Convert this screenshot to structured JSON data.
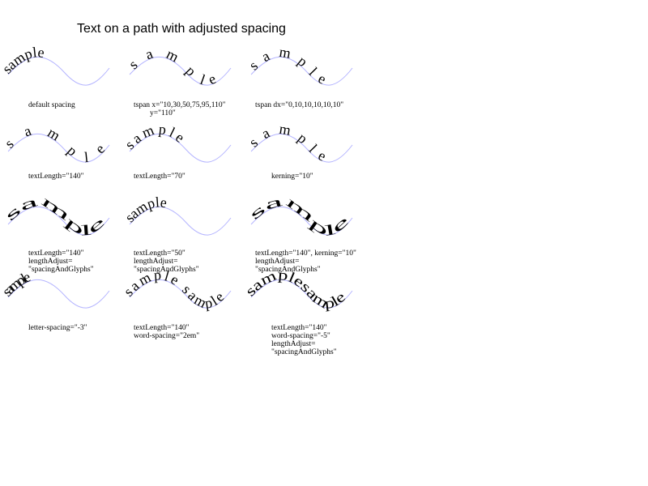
{
  "title": "Text on a path with adjusted spacing",
  "sample_word": "sample",
  "curve_color": "#b4b4ff",
  "panels": [
    {
      "id": "default",
      "sample": "sample",
      "captions": [
        "default spacing"
      ]
    },
    {
      "id": "tspan-x",
      "sample": "sample",
      "captions": [
        "tspan x=\"10,30,50,75,95,110\"",
        "y=\"110\""
      ]
    },
    {
      "id": "tspan-dx",
      "sample": "sample",
      "captions": [
        "tspan dx=\"0,10,10,10,10,10\""
      ]
    },
    {
      "id": "textlength-140",
      "sample": "sample",
      "captions": [
        "textLength=\"140\""
      ]
    },
    {
      "id": "textlength-70",
      "sample": "sample",
      "captions": [
        "textLength=\"70\""
      ]
    },
    {
      "id": "kerning-10",
      "sample": "sample",
      "captions": [
        "kerning=\"10\""
      ]
    },
    {
      "id": "textlength-140-glyphs",
      "sample": "sample",
      "captions": [
        "textLength=\"140\"",
        "lengthAdjust=",
        "\"spacingAndGlyphs\""
      ]
    },
    {
      "id": "textlength-50-glyphs",
      "sample": "sample",
      "captions": [
        "textLength=\"50\"",
        "lengthAdjust=",
        "\"spacingAndGlyphs\""
      ]
    },
    {
      "id": "textlength-140-kerning-glyphs",
      "sample": "sample",
      "captions": [
        "textLength=\"140\", kerning=\"10\"",
        "lengthAdjust=",
        "\"spacingAndGlyphs\""
      ]
    },
    {
      "id": "letter-spacing",
      "sample": "sample",
      "captions": [
        "letter-spacing=\"-3\""
      ]
    },
    {
      "id": "word-spacing-2em",
      "sample": "sample sample",
      "captions": [
        "textLength=\"140\"",
        "word-spacing=\"2em\""
      ]
    },
    {
      "id": "word-spacing-neg5",
      "sample": "samplesample",
      "captions": [
        "textLength=\"140\"",
        "word-spacing=\"-5\"",
        "lengthAdjust=",
        "\"spacingAndGlyphs\""
      ]
    }
  ]
}
